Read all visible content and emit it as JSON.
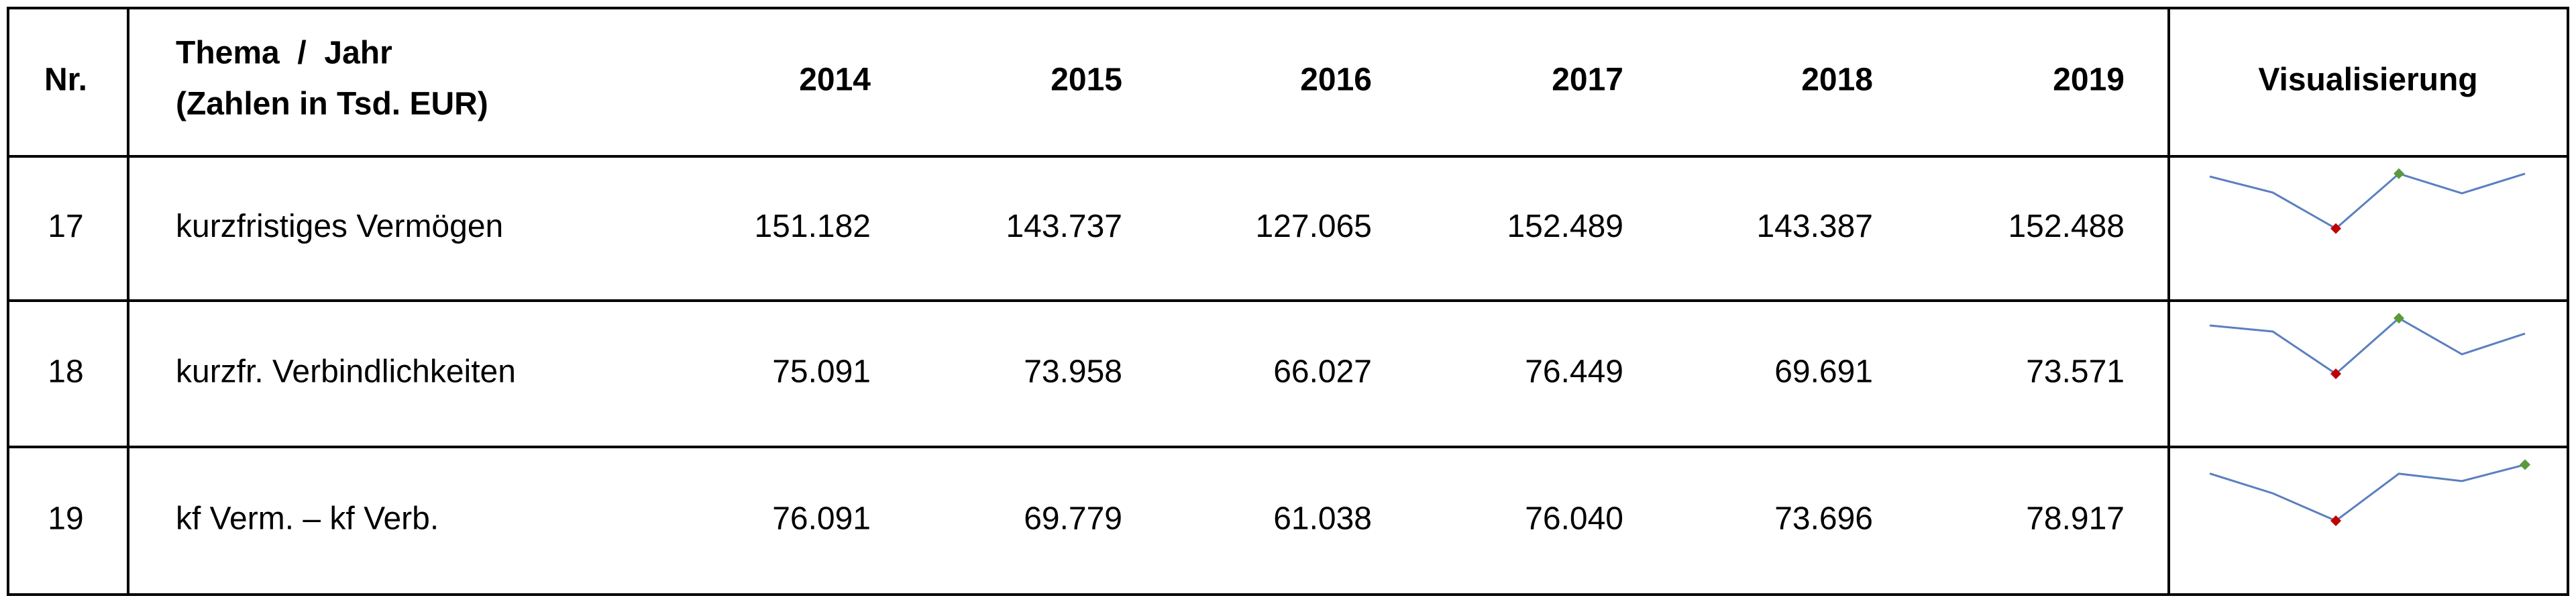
{
  "table": {
    "header": {
      "nr": "Nr.",
      "topic": [
        "Thema  /  Jahr",
        "(Zahlen in Tsd. EUR)"
      ],
      "years": [
        "2014",
        "2015",
        "2016",
        "2017",
        "2018",
        "2019"
      ],
      "visual": "Visualisierung"
    },
    "rows": [
      {
        "nr": "17",
        "label": "kurzfristiges Vermögen",
        "values": [
          151182,
          143737,
          127065,
          152489,
          143387,
          152488
        ],
        "value_labels": [
          "151.182",
          "143.737",
          "127.065",
          "152.489",
          "143.387",
          "152.488"
        ]
      },
      {
        "nr": "18",
        "label": "kurzfr. Verbindlichkeiten",
        "values": [
          75091,
          73958,
          66027,
          76449,
          69691,
          73571
        ],
        "value_labels": [
          "75.091",
          "73.958",
          "66.027",
          "76.449",
          "69.691",
          "73.571"
        ]
      },
      {
        "nr": "19",
        "label": "kf Verm. – kf Verb.",
        "values": [
          76091,
          69779,
          61038,
          76040,
          73696,
          78917
        ],
        "value_labels": [
          "76.091",
          "69.779",
          "61.038",
          "76.040",
          "73.696",
          "78.917"
        ]
      }
    ],
    "sparkline": {
      "line_color": "#5b7fc0",
      "high_color": "#5a9a3c",
      "low_color": "#c00000"
    }
  }
}
